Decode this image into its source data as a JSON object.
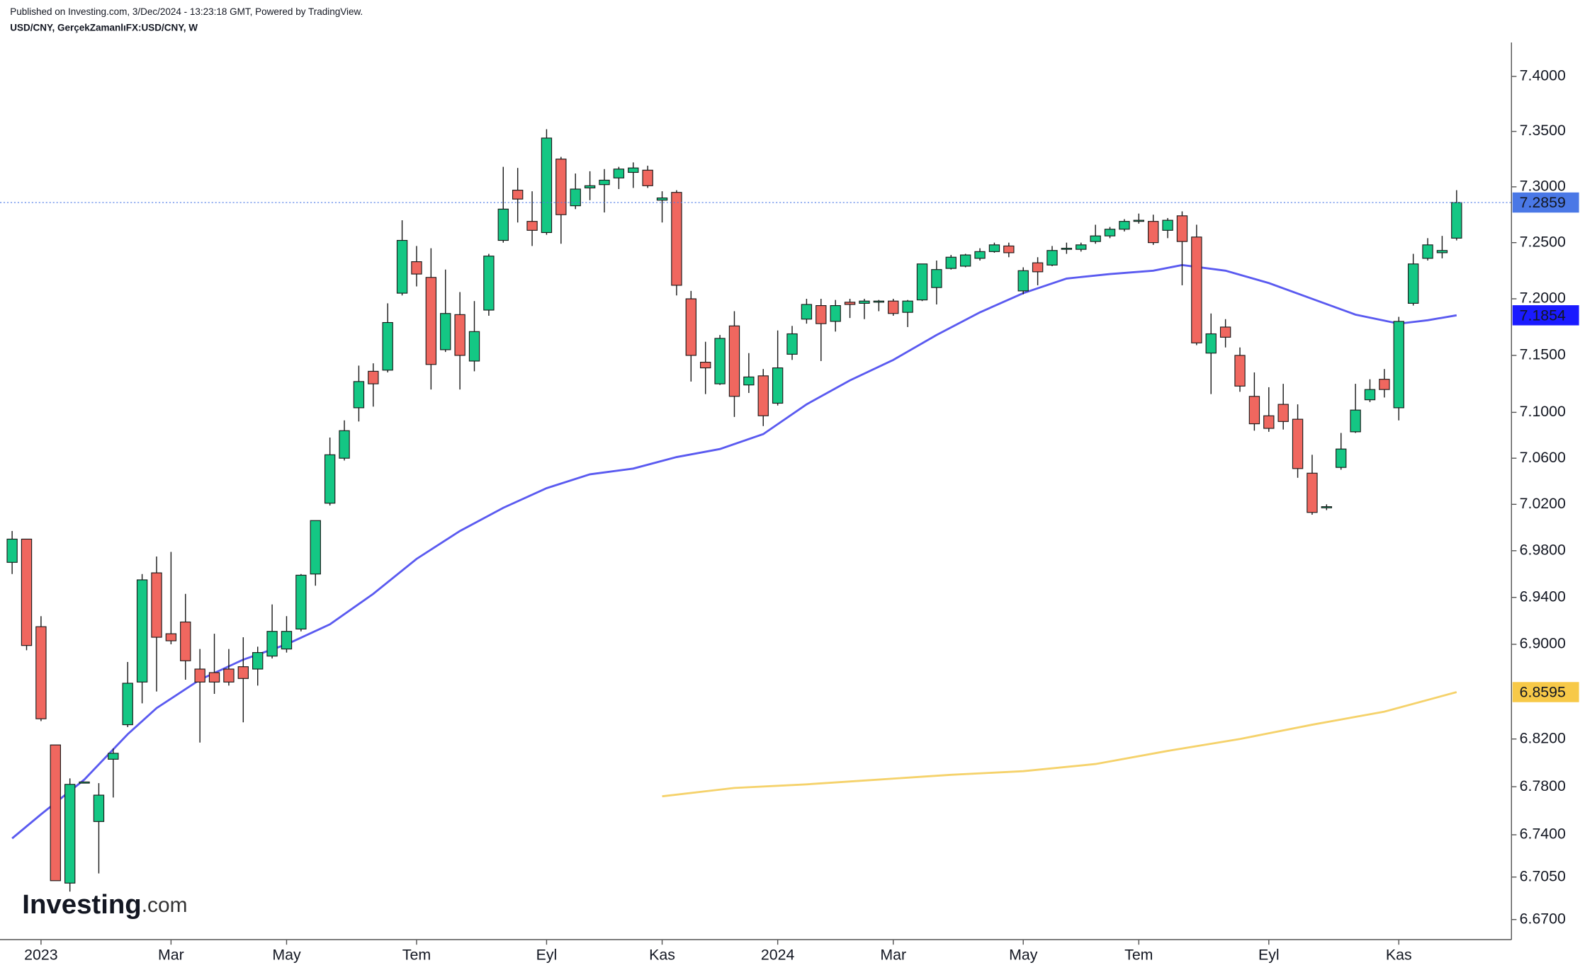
{
  "header": {
    "published": "Published on Investing.com, 3/Dec/2024 - 13:23:18 GMT, Powered by TradingView.",
    "symbol": "USD/CNY, GerçekZamanlıFX:USD/CNY, W"
  },
  "logo": {
    "name": "Investing",
    "suffix": ".com"
  },
  "chart_data": {
    "type": "candlestick",
    "log_scale": true,
    "up_color": "#14c784",
    "down_color": "#f0675f",
    "wick_color": "#1a1a1a",
    "xlim": [
      -0.84,
      103.8
    ],
    "xticks": [
      {
        "value": 2,
        "label": "2023"
      },
      {
        "value": 11,
        "label": "Mar"
      },
      {
        "value": 19,
        "label": "May"
      },
      {
        "value": 28,
        "label": "Tem"
      },
      {
        "value": 37,
        "label": "Eyl"
      },
      {
        "value": 45,
        "label": "Kas"
      },
      {
        "value": 53,
        "label": "2024"
      },
      {
        "value": 61,
        "label": "Mar"
      },
      {
        "value": 70,
        "label": "May"
      },
      {
        "value": 78,
        "label": "Tem"
      },
      {
        "value": 87,
        "label": "Eyl"
      },
      {
        "value": 96,
        "label": "Kas"
      }
    ],
    "ylim": [
      6.6535,
      7.431
    ],
    "yticks": [
      {
        "value": 7.4,
        "label": "7.4000"
      },
      {
        "value": 7.35,
        "label": "7.3500"
      },
      {
        "value": 7.3,
        "label": "7.3000"
      },
      {
        "value": 7.25,
        "label": "7.2500"
      },
      {
        "value": 7.2,
        "label": "7.2000"
      },
      {
        "value": 7.15,
        "label": "7.1500"
      },
      {
        "value": 7.1,
        "label": "7.1000"
      },
      {
        "value": 7.06,
        "label": "7.0600"
      },
      {
        "value": 7.02,
        "label": "7.0200"
      },
      {
        "value": 6.98,
        "label": "6.9800"
      },
      {
        "value": 6.94,
        "label": "6.9400"
      },
      {
        "value": 6.9,
        "label": "6.9000"
      },
      {
        "value": 6.82,
        "label": "6.8200"
      },
      {
        "value": 6.78,
        "label": "6.7800"
      },
      {
        "value": 6.74,
        "label": "6.7400"
      },
      {
        "value": 6.705,
        "label": "6.7050"
      },
      {
        "value": 6.67,
        "label": "6.6700"
      }
    ],
    "price_label": 7.2859,
    "price_color": "#4a78e6",
    "price_line": true,
    "x": [
      0,
      1,
      2,
      3,
      4,
      5,
      6,
      7,
      8,
      9,
      10,
      11,
      12,
      13,
      14,
      15,
      16,
      17,
      18,
      19,
      20,
      21,
      22,
      23,
      24,
      25,
      26,
      27,
      28,
      29,
      30,
      31,
      32,
      33,
      34,
      35,
      36,
      37,
      38,
      39,
      40,
      41,
      42,
      43,
      44,
      45,
      46,
      47,
      48,
      49,
      50,
      51,
      52,
      53,
      54,
      55,
      56,
      57,
      58,
      59,
      60,
      61,
      62,
      63,
      64,
      65,
      66,
      67,
      68,
      69,
      70,
      71,
      72,
      73,
      74,
      75,
      76,
      77,
      78,
      79,
      80,
      81,
      82,
      83,
      84,
      85,
      86,
      87,
      88,
      89,
      90,
      91,
      92,
      93,
      94,
      95,
      96,
      97,
      98,
      99,
      100
    ],
    "open": [
      6.97,
      6.99,
      6.915,
      6.815,
      6.7,
      6.783,
      6.751,
      6.803,
      6.832,
      6.868,
      6.961,
      6.909,
      6.919,
      6.879,
      6.876,
      6.879,
      6.881,
      6.879,
      6.89,
      6.896,
      6.913,
      6.96,
      7.021,
      7.06,
      7.104,
      7.136,
      7.137,
      7.205,
      7.233,
      7.219,
      7.155,
      7.186,
      7.145,
      7.19,
      7.252,
      7.297,
      7.269,
      7.259,
      7.325,
      7.283,
      7.299,
      7.302,
      7.308,
      7.313,
      7.315,
      7.288,
      7.295,
      7.2,
      7.144,
      7.125,
      7.176,
      7.124,
      7.132,
      7.108,
      7.151,
      7.182,
      7.194,
      7.18,
      7.197,
      7.196,
      7.197,
      7.198,
      7.188,
      7.199,
      7.21,
      7.227,
      7.229,
      7.236,
      7.242,
      7.247,
      7.207,
      7.232,
      7.23,
      7.244,
      7.244,
      7.251,
      7.256,
      7.262,
      7.269,
      7.269,
      7.261,
      7.274,
      7.255,
      7.152,
      7.175,
      7.15,
      7.114,
      7.097,
      7.107,
      7.094,
      7.047,
      7.017,
      7.052,
      7.083,
      7.111,
      7.129,
      7.104,
      7.196,
      7.236,
      7.241,
      7.254
    ],
    "high": [
      6.997,
      6.99,
      6.924,
      6.815,
      6.787,
      6.784,
      6.783,
      6.812,
      6.885,
      6.96,
      6.975,
      6.979,
      6.943,
      6.896,
      6.909,
      6.896,
      6.906,
      6.898,
      6.934,
      6.924,
      6.96,
      7.006,
      7.078,
      7.093,
      7.141,
      7.143,
      7.196,
      7.27,
      7.247,
      7.245,
      7.226,
      7.206,
      7.198,
      7.24,
      7.318,
      7.317,
      7.296,
      7.352,
      7.327,
      7.312,
      7.314,
      7.316,
      7.318,
      7.322,
      7.319,
      7.296,
      7.297,
      7.207,
      7.162,
      7.168,
      7.189,
      7.152,
      7.138,
      7.172,
      7.176,
      7.2,
      7.2,
      7.199,
      7.2,
      7.2,
      7.199,
      7.2,
      7.199,
      7.231,
      7.234,
      7.239,
      7.24,
      7.245,
      7.25,
      7.25,
      7.228,
      7.237,
      7.247,
      7.25,
      7.25,
      7.266,
      7.264,
      7.271,
      7.276,
      7.275,
      7.272,
      7.278,
      7.266,
      7.187,
      7.182,
      7.157,
      7.135,
      7.122,
      7.125,
      7.107,
      7.063,
      7.02,
      7.082,
      7.125,
      7.129,
      7.138,
      7.184,
      7.24,
      7.254,
      7.256,
      7.297
    ],
    "low": [
      6.96,
      6.895,
      6.835,
      6.702,
      6.693,
      6.783,
      6.708,
      6.771,
      6.83,
      6.85,
      6.86,
      6.9,
      6.87,
      6.817,
      6.858,
      6.865,
      6.834,
      6.865,
      6.888,
      6.893,
      6.911,
      6.95,
      7.019,
      7.058,
      7.092,
      7.105,
      7.135,
      7.203,
      7.211,
      7.12,
      7.153,
      7.12,
      7.136,
      7.185,
      7.25,
      7.268,
      7.247,
      7.257,
      7.249,
      7.28,
      7.288,
      7.277,
      7.298,
      7.299,
      7.299,
      7.268,
      7.203,
      7.127,
      7.116,
      7.124,
      7.096,
      7.117,
      7.088,
      7.106,
      7.146,
      7.178,
      7.145,
      7.171,
      7.183,
      7.182,
      7.189,
      7.185,
      7.175,
      7.198,
      7.195,
      7.226,
      7.228,
      7.234,
      7.241,
      7.237,
      7.204,
      7.212,
      7.229,
      7.24,
      7.242,
      7.249,
      7.254,
      7.26,
      7.267,
      7.248,
      7.254,
      7.212,
      7.159,
      7.116,
      7.157,
      7.118,
      7.084,
      7.083,
      7.085,
      7.043,
      7.011,
      7.015,
      7.05,
      7.082,
      7.109,
      7.113,
      7.093,
      7.194,
      7.234,
      7.236,
      7.252
    ],
    "close": [
      6.99,
      6.899,
      6.837,
      6.702,
      6.782,
      6.784,
      6.773,
      6.808,
      6.867,
      6.955,
      6.906,
      6.903,
      6.886,
      6.868,
      6.868,
      6.868,
      6.871,
      6.893,
      6.911,
      6.911,
      6.959,
      7.006,
      7.063,
      7.084,
      7.127,
      7.125,
      7.179,
      7.252,
      7.222,
      7.142,
      7.187,
      7.15,
      7.171,
      7.238,
      7.28,
      7.289,
      7.261,
      7.344,
      7.275,
      7.298,
      7.301,
      7.306,
      7.316,
      7.317,
      7.301,
      7.29,
      7.212,
      7.15,
      7.139,
      7.165,
      7.114,
      7.131,
      7.097,
      7.139,
      7.169,
      7.195,
      7.178,
      7.194,
      7.195,
      7.198,
      7.198,
      7.187,
      7.198,
      7.231,
      7.226,
      7.237,
      7.239,
      7.242,
      7.248,
      7.241,
      7.225,
      7.224,
      7.243,
      7.245,
      7.248,
      7.256,
      7.262,
      7.269,
      7.27,
      7.25,
      7.27,
      7.251,
      7.161,
      7.169,
      7.166,
      7.123,
      7.09,
      7.086,
      7.092,
      7.051,
      7.013,
      7.018,
      7.068,
      7.102,
      7.12,
      7.12,
      7.18,
      7.231,
      7.248,
      7.243,
      7.2859
    ],
    "series": [
      {
        "color": "#5a5af0",
        "label_color": "#1a1aff",
        "label_text_color": "#ffffff",
        "price_label": 7.1854,
        "x": [
          0,
          2,
          5,
          8,
          10,
          13,
          16,
          19,
          22,
          25,
          28,
          31,
          34,
          37,
          40,
          43,
          46,
          49,
          52,
          55,
          58,
          61,
          64,
          67,
          70,
          73,
          76,
          79,
          81,
          84,
          87,
          90,
          93,
          96,
          98,
          100
        ],
        "values": [
          6.737,
          6.757,
          6.786,
          6.824,
          6.846,
          6.87,
          6.887,
          6.9,
          6.917,
          6.943,
          6.973,
          6.997,
          7.017,
          7.034,
          7.046,
          7.051,
          7.061,
          7.068,
          7.081,
          7.107,
          7.128,
          7.146,
          7.168,
          7.188,
          7.205,
          7.218,
          7.222,
          7.225,
          7.23,
          7.225,
          7.214,
          7.2,
          7.186,
          7.178,
          7.181,
          7.1854
        ]
      },
      {
        "color": "#f5d26b",
        "label_color": "#f7c948",
        "label_text_color": "#000000",
        "price_label": 6.8595,
        "x": [
          45,
          50,
          55,
          60,
          65,
          70,
          75,
          80,
          85,
          90,
          95,
          100
        ],
        "values": [
          6.772,
          6.779,
          6.782,
          6.786,
          6.79,
          6.793,
          6.799,
          6.81,
          6.82,
          6.832,
          6.843,
          6.8595
        ]
      }
    ]
  }
}
